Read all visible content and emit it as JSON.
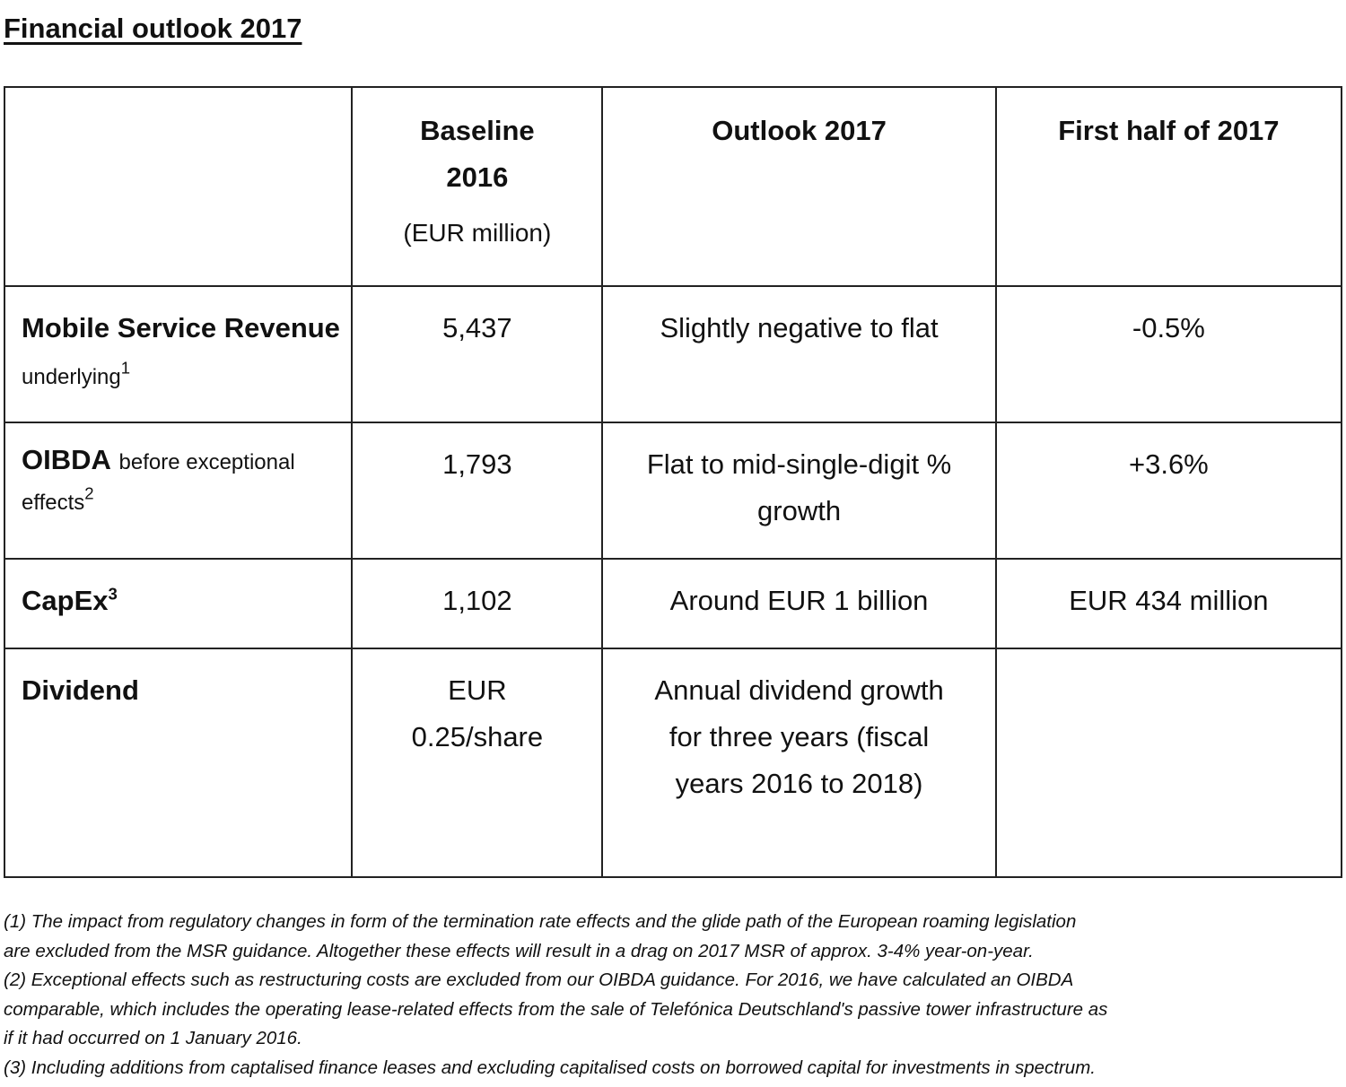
{
  "title": "Financial outlook 2017",
  "table": {
    "headers": [
      "",
      "Baseline 2016",
      "(EUR million)",
      "Outlook 2017",
      "First half of 2017"
    ],
    "rows": [
      {
        "label": "Mobile Service Revenue",
        "qualifier": "underlying",
        "note": "1",
        "baseline": "5,437",
        "outlook": "Slightly negative to flat",
        "h1": "-0.5%"
      },
      {
        "label": "OIBDA",
        "qualifier": "before exceptional effects",
        "note": "2",
        "baseline": "1,793",
        "outlook": "Flat to mid-single-digit % growth",
        "h1": "+3.6%"
      },
      {
        "label": "CapEx",
        "qualifier": "",
        "note": "3",
        "baseline": "1,102",
        "outlook": "Around EUR 1 billion",
        "h1": "EUR 434 million"
      },
      {
        "label": "Dividend",
        "qualifier": "",
        "note": "",
        "baseline": "EUR 0.25/share",
        "outlook": "Annual dividend growth for three years (fiscal years 2016 to 2018)",
        "h1": ""
      }
    ]
  },
  "footnotes": [
    "(1) The impact from regulatory changes in form of the termination rate effects and the glide path of the European roaming legislation",
    "are excluded from the MSR guidance. Altogether these effects will result in a drag on 2017 MSR of approx. 3-4% year-on-year.",
    "(2) Exceptional effects such as restructuring costs are excluded from our OIBDA guidance. For 2016, we have calculated an OIBDA",
    "comparable, which includes the operating lease-related effects from the sale of Telefónica Deutschland's passive tower infrastructure as",
    "if it had occurred on 1 January 2016.",
    "(3) Including additions from captalised finance leases and excluding capitalised costs on borrowed capital for investments in spectrum."
  ]
}
